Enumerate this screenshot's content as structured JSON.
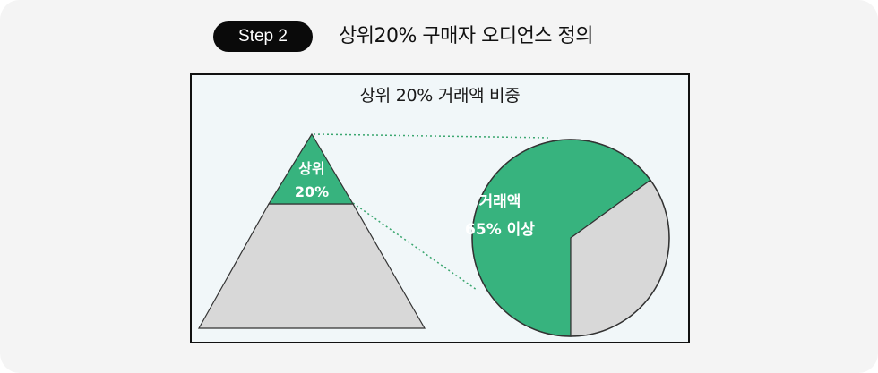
{
  "step": {
    "badge": "Step 2",
    "title": "상위20% 구매자 오디언스 정의"
  },
  "chart_data": {
    "type": "pie",
    "title": "상위 20% 거래액 비중",
    "pyramid": {
      "top_label_line1": "상위",
      "top_label_line2": "20%",
      "top_share": 0.2
    },
    "slices": [
      {
        "label_line1": "거래액",
        "label_line2": "65% 이상",
        "value": 65
      },
      {
        "label_line1": "",
        "label_line2": "",
        "value": 35
      }
    ]
  },
  "colors": {
    "green": "#37b37e",
    "gray": "#d8d8d8",
    "outline": "#333333",
    "dotted": "#3aa66f"
  }
}
